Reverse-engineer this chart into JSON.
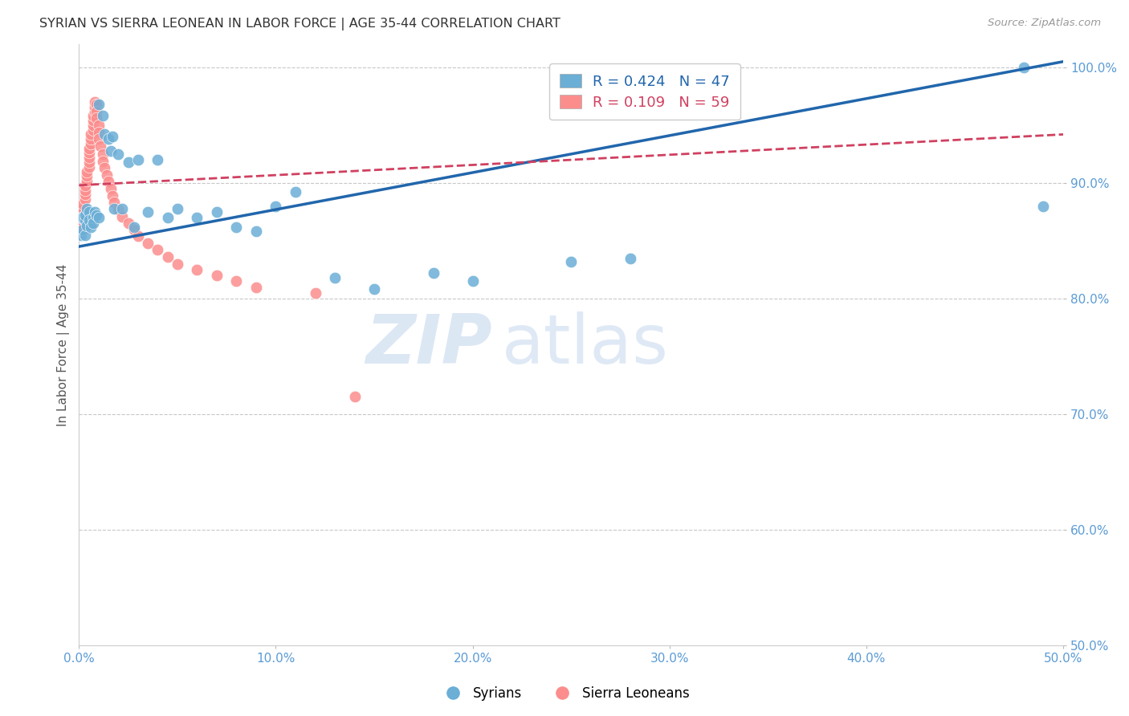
{
  "title": "SYRIAN VS SIERRA LEONEAN IN LABOR FORCE | AGE 35-44 CORRELATION CHART",
  "source": "Source: ZipAtlas.com",
  "ylabel": "In Labor Force | Age 35-44",
  "xlabel": "",
  "xlim": [
    0.0,
    0.5
  ],
  "ylim": [
    0.5,
    1.02
  ],
  "yticks": [
    0.5,
    0.6,
    0.7,
    0.8,
    0.9,
    1.0
  ],
  "ytick_labels": [
    "50.0%",
    "60.0%",
    "70.0%",
    "80.0%",
    "90.0%",
    "100.0%"
  ],
  "xticks": [
    0.0,
    0.1,
    0.2,
    0.3,
    0.4,
    0.5
  ],
  "xtick_labels": [
    "0.0%",
    "10.0%",
    "20.0%",
    "30.0%",
    "40.0%",
    "50.0%"
  ],
  "blue_R": 0.424,
  "blue_N": 47,
  "pink_R": 0.109,
  "pink_N": 59,
  "legend_label_blue": "Syrians",
  "legend_label_pink": "Sierra Leoneans",
  "blue_color": "#6baed6",
  "pink_color": "#fc8d8d",
  "blue_line_color": "#2166ac",
  "pink_line_color": "#d04060",
  "watermark_zip": "ZIP",
  "watermark_atlas": "atlas",
  "title_color": "#333333",
  "axis_label_color": "#555555",
  "tick_color": "#5b9bd5",
  "grid_color": "#c8c8c8",
  "blue_x": [
    0.001,
    0.001,
    0.002,
    0.002,
    0.003,
    0.003,
    0.003,
    0.004,
    0.004,
    0.005,
    0.005,
    0.006,
    0.007,
    0.007,
    0.008,
    0.009,
    0.01,
    0.01,
    0.012,
    0.013,
    0.015,
    0.016,
    0.017,
    0.018,
    0.02,
    0.022,
    0.025,
    0.028,
    0.03,
    0.035,
    0.04,
    0.045,
    0.05,
    0.06,
    0.07,
    0.08,
    0.09,
    0.1,
    0.11,
    0.13,
    0.15,
    0.18,
    0.2,
    0.25,
    0.28,
    0.48,
    0.49
  ],
  "blue_y": [
    0.87,
    0.855,
    0.86,
    0.87,
    0.855,
    0.868,
    0.872,
    0.878,
    0.863,
    0.875,
    0.868,
    0.862,
    0.87,
    0.865,
    0.875,
    0.872,
    0.87,
    0.968,
    0.958,
    0.942,
    0.938,
    0.928,
    0.94,
    0.878,
    0.925,
    0.878,
    0.918,
    0.862,
    0.92,
    0.875,
    0.92,
    0.87,
    0.878,
    0.87,
    0.875,
    0.862,
    0.858,
    0.88,
    0.892,
    0.818,
    0.808,
    0.822,
    0.815,
    0.832,
    0.835,
    1.0,
    0.88
  ],
  "pink_x": [
    0.001,
    0.001,
    0.001,
    0.002,
    0.002,
    0.002,
    0.002,
    0.003,
    0.003,
    0.003,
    0.003,
    0.004,
    0.004,
    0.004,
    0.005,
    0.005,
    0.005,
    0.005,
    0.005,
    0.006,
    0.006,
    0.006,
    0.007,
    0.007,
    0.007,
    0.007,
    0.008,
    0.008,
    0.008,
    0.009,
    0.009,
    0.009,
    0.01,
    0.01,
    0.01,
    0.011,
    0.012,
    0.012,
    0.013,
    0.014,
    0.015,
    0.016,
    0.017,
    0.018,
    0.02,
    0.022,
    0.025,
    0.028,
    0.03,
    0.035,
    0.04,
    0.045,
    0.05,
    0.06,
    0.07,
    0.08,
    0.09,
    0.12,
    0.14
  ],
  "pink_y": [
    0.858,
    0.862,
    0.866,
    0.87,
    0.874,
    0.878,
    0.882,
    0.886,
    0.89,
    0.894,
    0.898,
    0.902,
    0.906,
    0.91,
    0.914,
    0.918,
    0.922,
    0.926,
    0.93,
    0.934,
    0.938,
    0.942,
    0.946,
    0.95,
    0.954,
    0.958,
    0.962,
    0.966,
    0.97,
    0.968,
    0.962,
    0.956,
    0.95,
    0.944,
    0.938,
    0.932,
    0.925,
    0.919,
    0.913,
    0.907,
    0.901,
    0.895,
    0.889,
    0.883,
    0.877,
    0.871,
    0.865,
    0.86,
    0.854,
    0.848,
    0.842,
    0.836,
    0.83,
    0.825,
    0.82,
    0.815,
    0.81,
    0.805,
    0.715
  ]
}
